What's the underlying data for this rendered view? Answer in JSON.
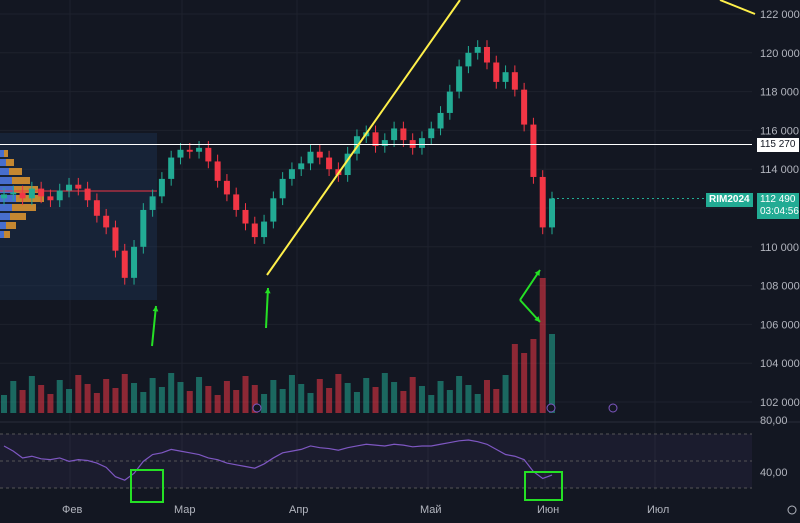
{
  "chart_data": [
    {
      "type": "candlestick",
      "symbol": "RIM2024",
      "last_price_label": "112 490",
      "countdown": "03:04:56",
      "level_label": "115 270",
      "level_value": 115270,
      "y_ticks": [
        "122 000",
        "120 000",
        "118 000",
        "116 000",
        "114 000",
        "112 000",
        "110 000",
        "108 000",
        "106 000",
        "104 000",
        "102 000"
      ],
      "y_tick_values": [
        122000,
        120000,
        118000,
        116000,
        114000,
        112000,
        110000,
        108000,
        106000,
        104000,
        102000
      ],
      "x_ticks": [
        "Фев",
        "Мар",
        "Апр",
        "Май",
        "Июн",
        "Июл"
      ],
      "ohlc_close_path": [
        112700,
        112800,
        112500,
        113000,
        112600,
        112400,
        112900,
        113200,
        113000,
        112400,
        111600,
        111000,
        109800,
        108400,
        110000,
        111900,
        112600,
        113500,
        114600,
        115000,
        114900,
        115100,
        114400,
        113400,
        112700,
        111900,
        111200,
        110500,
        111300,
        112500,
        113500,
        114000,
        114300,
        114900,
        114600,
        114000,
        113700,
        114800,
        115700,
        115900,
        115200,
        115500,
        116100,
        115500,
        115100,
        115600,
        116100,
        116900,
        118000,
        119300,
        120000,
        120300,
        119500,
        118500,
        119000,
        118100,
        116300,
        113600,
        111000,
        112490
      ],
      "volume_colors": {
        "up": "#22ab94",
        "down": "#f23645"
      },
      "annotations": {
        "trendline_color": "#fff04a",
        "arrow_color": "#25e025"
      }
    },
    {
      "type": "line",
      "indicator": "RSI",
      "y_ticks": [
        "80,00",
        "40,00"
      ],
      "y_tick_values": [
        80,
        40
      ],
      "line_color": "#7e57c2",
      "values": [
        66,
        60,
        52,
        54,
        51,
        50,
        52,
        48,
        50,
        49,
        46,
        41,
        30,
        26,
        34,
        48,
        56,
        58,
        62,
        60,
        58,
        56,
        52,
        50,
        46,
        44,
        42,
        40,
        45,
        52,
        58,
        60,
        62,
        66,
        64,
        63,
        61,
        64,
        66,
        68,
        67,
        66,
        68,
        67,
        65,
        66,
        66,
        68,
        70,
        72,
        73,
        71,
        68,
        62,
        56,
        54,
        50,
        36,
        28,
        32
      ]
    }
  ]
}
